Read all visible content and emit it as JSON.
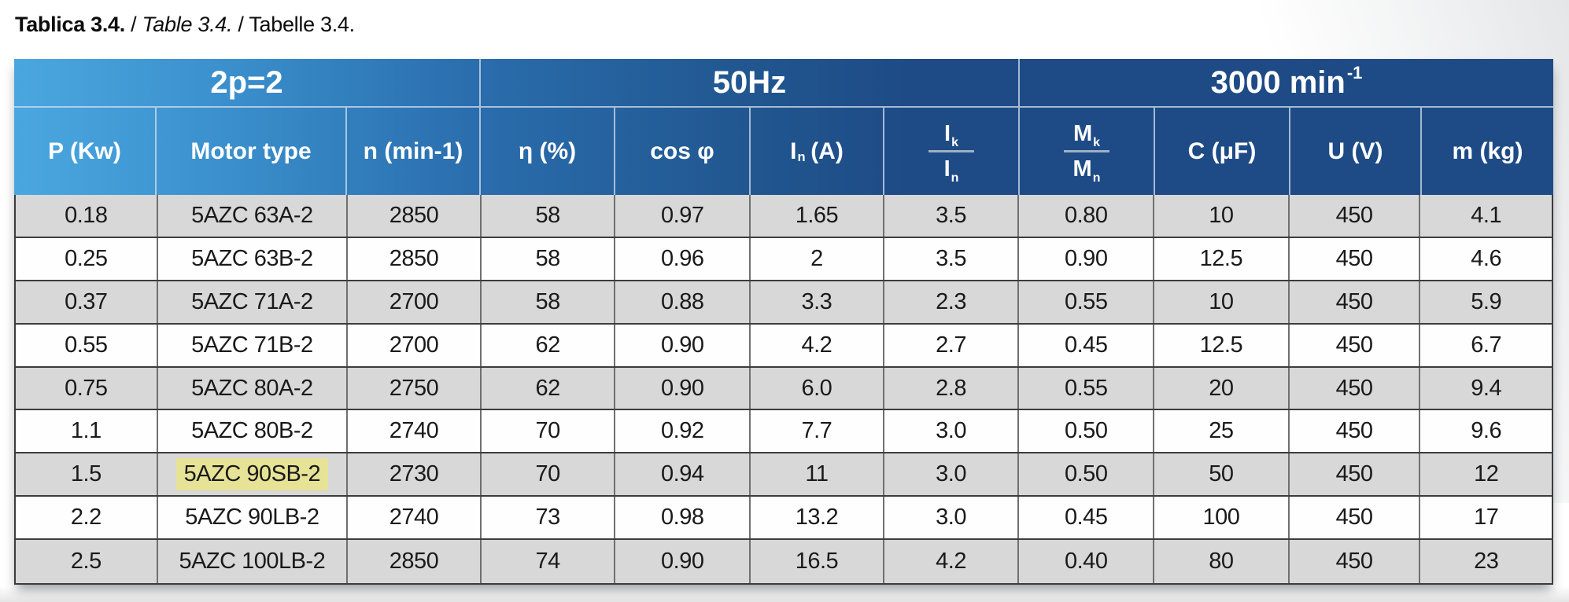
{
  "caption": {
    "croatian": "Tablica 3.4.",
    "sep1": " / ",
    "english": "Table 3.4.",
    "sep2": " / ",
    "german": "Tabelle 3.4."
  },
  "table": {
    "groups": [
      {
        "label": "2p=2"
      },
      {
        "label": "50Hz"
      },
      {
        "label": "3000 min",
        "sup": "-1"
      }
    ],
    "columns": [
      {
        "label": "P (Kw)"
      },
      {
        "label": "Motor type"
      },
      {
        "label": "n (min-1)"
      },
      {
        "label": "η (%)"
      },
      {
        "label": "cos φ"
      },
      {
        "main": "I",
        "sub": "n",
        "after": "(A)"
      },
      {
        "top": {
          "main": "I",
          "sub": "k"
        },
        "bottom": {
          "main": "I",
          "sub": "n"
        }
      },
      {
        "top": {
          "main": "M",
          "sub": "k"
        },
        "bottom": {
          "main": "M",
          "sub": "n"
        }
      },
      {
        "label": "C (μF)"
      },
      {
        "label": "U (V)"
      },
      {
        "label": "m (kg)"
      }
    ],
    "rows": [
      {
        "values": [
          "0.18",
          "5AZC 63A-2",
          "2850",
          "58",
          "0.97",
          "1.65",
          "3.5",
          "0.80",
          "10",
          "450",
          "4.1"
        ],
        "highlight_col": null
      },
      {
        "values": [
          "0.25",
          "5AZC 63B-2",
          "2850",
          "58",
          "0.96",
          "2",
          "3.5",
          "0.90",
          "12.5",
          "450",
          "4.6"
        ],
        "highlight_col": null
      },
      {
        "values": [
          "0.37",
          "5AZC 71A-2",
          "2700",
          "58",
          "0.88",
          "3.3",
          "2.3",
          "0.55",
          "10",
          "450",
          "5.9"
        ],
        "highlight_col": null
      },
      {
        "values": [
          "0.55",
          "5AZC 71B-2",
          "2700",
          "62",
          "0.90",
          "4.2",
          "2.7",
          "0.45",
          "12.5",
          "450",
          "6.7"
        ],
        "highlight_col": null
      },
      {
        "values": [
          "0.75",
          "5AZC 80A-2",
          "2750",
          "62",
          "0.90",
          "6.0",
          "2.8",
          "0.55",
          "20",
          "450",
          "9.4"
        ],
        "highlight_col": null
      },
      {
        "values": [
          "1.1",
          "5AZC 80B-2",
          "2740",
          "70",
          "0.92",
          "7.7",
          "3.0",
          "0.50",
          "25",
          "450",
          "9.6"
        ],
        "highlight_col": null
      },
      {
        "values": [
          "1.5",
          "5AZC 90SB-2",
          "2730",
          "70",
          "0.94",
          "11",
          "3.0",
          "0.50",
          "50",
          "450",
          "12"
        ],
        "highlight_col": 1
      },
      {
        "values": [
          "2.2",
          "5AZC 90LB-2",
          "2740",
          "73",
          "0.98",
          "13.2",
          "3.0",
          "0.45",
          "100",
          "450",
          "17"
        ],
        "highlight_col": null
      },
      {
        "values": [
          "2.5",
          "5AZC 100LB-2",
          "2850",
          "74",
          "0.90",
          "16.5",
          "4.2",
          "0.40",
          "80",
          "450",
          "23"
        ],
        "highlight_col": null
      }
    ],
    "highlighted_motor": "5AZC 90SB-2"
  },
  "colors": {
    "header_gradient_start": "#4ba7e0",
    "header_gradient_end": "#1e4b86",
    "row_stripe_gray": "#d8d8d8",
    "row_white": "#fefefe",
    "highlight_yellow": "#e7e396",
    "border_dark": "#3c3c3c",
    "border_vertical": "#707070",
    "header_divider": "#d2deec",
    "fraction_bar": "#9fb0c6"
  }
}
